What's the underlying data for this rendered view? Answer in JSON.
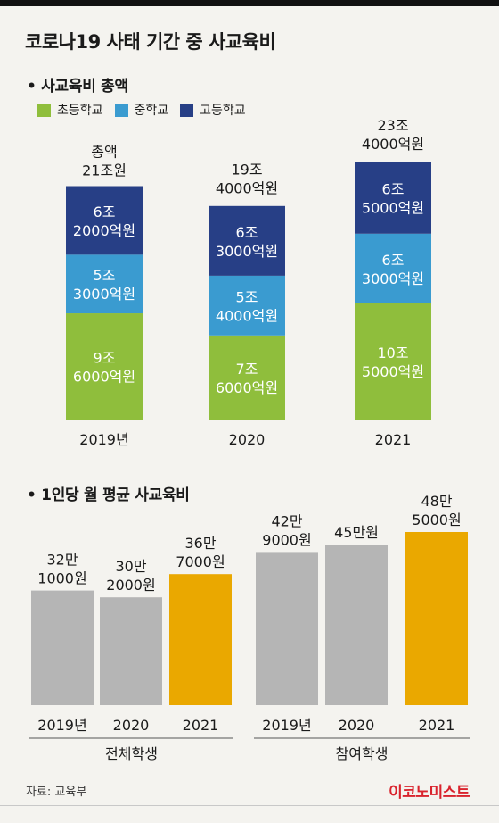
{
  "title": "코로나19 사태 기간 중 사교육비",
  "colors": {
    "elementary": "#8fbe3c",
    "middle": "#3a9bd0",
    "high": "#273f86",
    "gray": "#b5b5b5",
    "highlight": "#eaa800"
  },
  "chart1": {
    "title": "• 사교육비 총액",
    "legend": [
      "초등학교",
      "중학교",
      "고등학교"
    ]
  },
  "chart2": {
    "title": "• 1인당 월 평균 사교육비",
    "group_labels": [
      "전체학생",
      "참여학생"
    ]
  },
  "chart_data": [
    {
      "type": "bar",
      "stacked": true,
      "title": "사교육비 총액",
      "unit": "억원",
      "categories": [
        "2019년",
        "2020",
        "2021"
      ],
      "series": [
        {
          "name": "초등학교",
          "values": [
            96000,
            76000,
            105000
          ],
          "labels": [
            [
              "9조",
              "6000억원"
            ],
            [
              "7조",
              "6000억원"
            ],
            [
              "10조",
              "5000억원"
            ]
          ]
        },
        {
          "name": "중학교",
          "values": [
            53000,
            54000,
            63000
          ],
          "labels": [
            [
              "5조",
              "3000억원"
            ],
            [
              "5조",
              "4000억원"
            ],
            [
              "6조",
              "3000억원"
            ]
          ]
        },
        {
          "name": "고등학교",
          "values": [
            62000,
            63000,
            65000
          ],
          "labels": [
            [
              "6조",
              "2000억원"
            ],
            [
              "6조",
              "3000억원"
            ],
            [
              "6조",
              "5000억원"
            ]
          ]
        }
      ],
      "totals": [
        210000,
        194000,
        234000
      ],
      "total_labels": [
        [
          "총액",
          "21조원"
        ],
        [
          "19조",
          "4000억원"
        ],
        [
          "23조",
          "4000억원"
        ]
      ]
    },
    {
      "type": "bar",
      "title": "1인당 월 평균 사교육비",
      "unit": "원",
      "groups": [
        {
          "name": "전체학생",
          "categories": [
            "2019년",
            "2020",
            "2021"
          ],
          "values": [
            321000,
            302000,
            367000
          ],
          "labels": [
            [
              "32만",
              "1000원"
            ],
            [
              "30만",
              "2000원"
            ],
            [
              "36만",
              "7000원"
            ]
          ]
        },
        {
          "name": "참여학생",
          "categories": [
            "2019년",
            "2020",
            "2021"
          ],
          "values": [
            429000,
            450000,
            485000
          ],
          "labels": [
            [
              "42만",
              "9000원"
            ],
            [
              "45만원"
            ],
            [
              "48만",
              "5000원"
            ]
          ]
        }
      ]
    }
  ],
  "source": "자료: 교육부",
  "logo": "이코노미스트"
}
